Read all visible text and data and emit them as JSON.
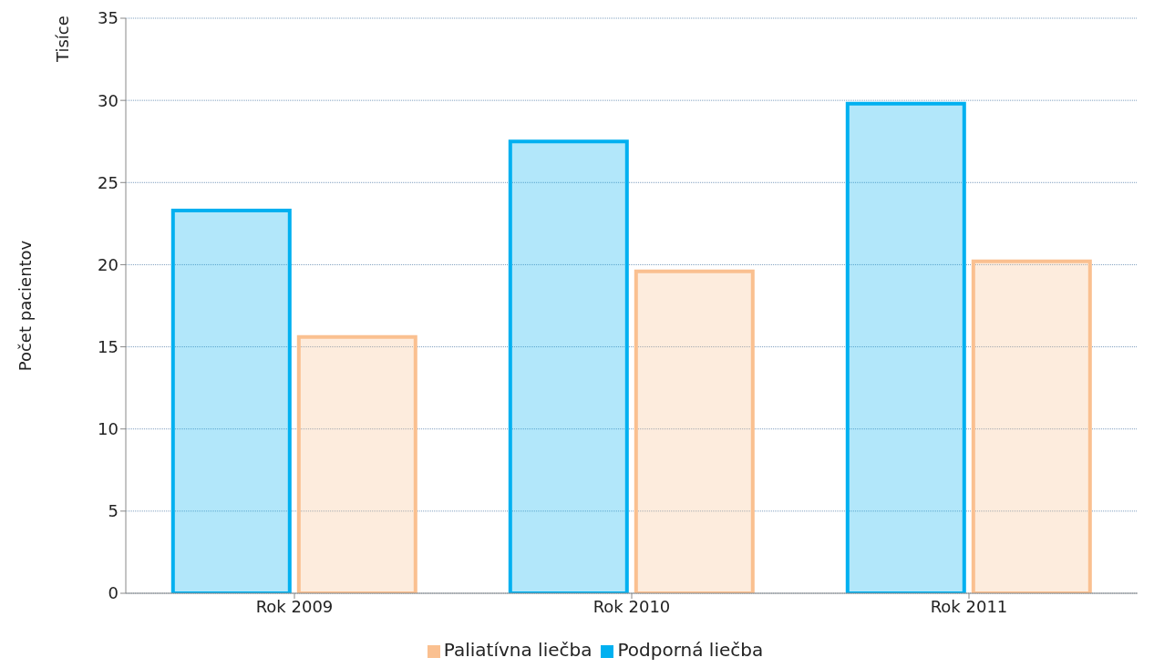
{
  "chart_data": {
    "type": "bar",
    "categories": [
      "Rok 2009",
      "Rok 2010",
      "Rok 2011"
    ],
    "series": [
      {
        "name": "Podporná liečba",
        "color": "#00b0f0",
        "values": [
          23.3,
          27.5,
          29.8
        ]
      },
      {
        "name": "Paliatívna liečba",
        "color": "#fac090",
        "values": [
          15.6,
          19.6,
          20.2
        ]
      }
    ],
    "ylabel": "Počet pacientov",
    "annotations": [
      "Tisíce"
    ],
    "ylim": [
      0,
      35
    ],
    "yticks": [
      0,
      5,
      10,
      15,
      20,
      25,
      30,
      35
    ],
    "grid": "y",
    "legend": "bottom"
  }
}
